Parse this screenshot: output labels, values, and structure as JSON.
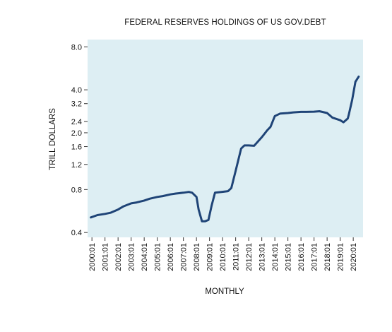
{
  "chart_data": {
    "type": "line",
    "title": "FEDERAL RESERVES HOLDINGS OF US GOV.DEBT",
    "xlabel": "MONTHLY",
    "ylabel": "TRILL DOLLARS",
    "y_scale": "log",
    "ylim": [
      0.37,
      9.0
    ],
    "yticks": [
      0.4,
      0.8,
      1.2,
      1.6,
      2.0,
      2.4,
      3.2,
      4.0,
      8.0
    ],
    "ytick_labels": [
      "0.4",
      "0.8",
      "1.2",
      "1.6",
      "2.0",
      "2.4",
      "3.2",
      "4.0",
      "8.0"
    ],
    "xlim": [
      "1999-09",
      "2020-10"
    ],
    "xticks": [
      "2000:01",
      "2001:01",
      "2002:01",
      "2003:01",
      "2004:01",
      "2005:01",
      "2006:01",
      "2007:01",
      "2008:01",
      "2009:01",
      "2010:01",
      "2011:01",
      "2012:01",
      "2013:01",
      "2014:01",
      "2015:01",
      "2016:01",
      "2017:01",
      "2018:01",
      "2019:01",
      "2020:01"
    ],
    "grid": false,
    "background_color": "#ddeef3",
    "line_color": "#1f4477",
    "series": [
      {
        "x": [
          "1999:12",
          "2000:06",
          "2001:01",
          "2001:06",
          "2002:01",
          "2002:06",
          "2003:01",
          "2003:06",
          "2004:01",
          "2004:06",
          "2005:01",
          "2005:06",
          "2006:01",
          "2006:06",
          "2007:01",
          "2007:06",
          "2007:09",
          "2008:01",
          "2008:03",
          "2008:06",
          "2008:09",
          "2008:12",
          "2009:03",
          "2009:06",
          "2009:12",
          "2010:06",
          "2010:09",
          "2011:01",
          "2011:06",
          "2011:09",
          "2012:01",
          "2012:06",
          "2013:01",
          "2013:06",
          "2013:09",
          "2014:01",
          "2014:06",
          "2015:01",
          "2015:06",
          "2016:01",
          "2016:06",
          "2017:01",
          "2017:06",
          "2018:01",
          "2018:06",
          "2019:01",
          "2019:04",
          "2019:08",
          "2019:09",
          "2019:12",
          "2020:03",
          "2020:06"
        ],
        "y": [
          0.51,
          0.53,
          0.54,
          0.55,
          0.58,
          0.61,
          0.64,
          0.65,
          0.67,
          0.69,
          0.71,
          0.72,
          0.74,
          0.75,
          0.76,
          0.77,
          0.76,
          0.71,
          0.58,
          0.48,
          0.48,
          0.49,
          0.62,
          0.76,
          0.77,
          0.78,
          0.82,
          1.08,
          1.55,
          1.63,
          1.63,
          1.62,
          1.86,
          2.08,
          2.2,
          2.62,
          2.73,
          2.75,
          2.78,
          2.8,
          2.8,
          2.81,
          2.83,
          2.75,
          2.55,
          2.45,
          2.37,
          2.52,
          2.7,
          3.4,
          4.55,
          4.95
        ]
      }
    ]
  }
}
